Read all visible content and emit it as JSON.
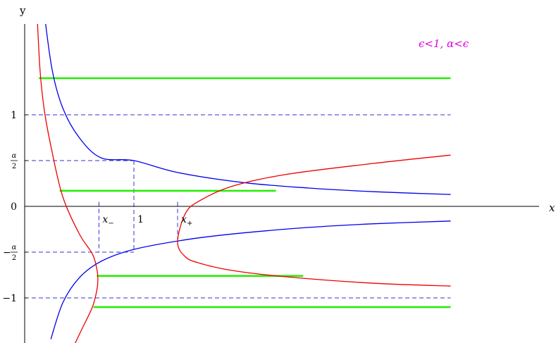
{
  "chart_data": {
    "type": "line",
    "title": "",
    "annotation": "ϵ<1, α<ϵ",
    "annotation_color": "#dd00dd",
    "xlabel": "x",
    "ylabel": "y",
    "xlim": [
      0,
      4
    ],
    "ylim": [
      -1.45,
      2.1
    ],
    "grid": false,
    "y_ticks": [
      {
        "value": 1,
        "label": "1"
      },
      {
        "value": 0.5,
        "label": "α/2",
        "num": "α",
        "den": "2",
        "sign": ""
      },
      {
        "value": 0,
        "label": "0"
      },
      {
        "value": -0.5,
        "label": "−α/2",
        "num": "α",
        "den": "2",
        "sign": "−"
      },
      {
        "value": -1,
        "label": "−1"
      }
    ],
    "x_marks": [
      {
        "value": 0.68,
        "label": "x₋",
        "base": "x",
        "sub": "−"
      },
      {
        "value": 1.0,
        "label": "1",
        "base": "1",
        "sub": ""
      },
      {
        "value": 1.4,
        "label": "x₊",
        "base": "x",
        "sub": "+"
      }
    ],
    "colors": {
      "blue": "#0000ee",
      "red": "#ee0000",
      "green": "#22ee00",
      "dashed": "#3333cc",
      "axis": "#000000"
    },
    "blue_curves": [
      {
        "x": [
          0.17,
          0.25,
          0.35,
          0.5,
          0.7,
          1.0,
          1.4,
          2.0,
          2.6,
          3.2,
          3.9
        ],
        "y": [
          2.2,
          1.5,
          1.07,
          0.75,
          0.53,
          0.5,
          0.37,
          0.26,
          0.2,
          0.16,
          0.13
        ]
      },
      {
        "x": [
          0.24,
          0.35,
          0.5,
          0.7,
          1.0,
          1.5,
          2.0,
          2.6,
          3.2,
          3.9
        ],
        "y": [
          -1.45,
          -1.05,
          -0.78,
          -0.6,
          -0.47,
          -0.36,
          -0.29,
          -0.23,
          -0.19,
          -0.16
        ]
      }
    ],
    "red_curves": [
      {
        "x": [
          0.11,
          0.14,
          0.18,
          0.25,
          0.35,
          0.5,
          0.62,
          0.66,
          0.67,
          0.66,
          0.62,
          0.52,
          0.44,
          0.4
        ],
        "y": [
          2.2,
          1.5,
          1.05,
          0.6,
          0.1,
          -0.3,
          -0.52,
          -0.68,
          -0.8,
          -0.92,
          -1.1,
          -1.35,
          -1.55,
          -1.65
        ]
      },
      {
        "x": [
          3.9,
          3.2,
          2.4,
          1.9,
          1.6,
          1.47,
          1.4,
          1.47,
          1.6,
          1.9,
          2.4,
          3.2,
          3.9
        ],
        "y": [
          0.56,
          0.47,
          0.35,
          0.22,
          0.06,
          -0.08,
          -0.39,
          -0.55,
          -0.62,
          -0.7,
          -0.77,
          -0.84,
          -0.87
        ]
      }
    ],
    "green_levels": [
      {
        "y": 1.4,
        "x_start": 0.13,
        "x_end": 3.9
      },
      {
        "y": 0.17,
        "x_start": 0.32,
        "x_end": 2.3
      },
      {
        "y": -0.76,
        "x_start": 0.66,
        "x_end": 2.55
      },
      {
        "y": -1.1,
        "x_start": 0.63,
        "x_end": 3.9
      }
    ],
    "dashed_h": [
      {
        "y": 1,
        "x_start": 0,
        "x_end": 3.9
      },
      {
        "y": 0.5,
        "x_start": 0,
        "x_end": 1.0
      },
      {
        "y": -0.5,
        "x_start": 0,
        "x_end": 1.0
      },
      {
        "y": -1,
        "x_start": 0,
        "x_end": 3.9
      }
    ],
    "dashed_v": [
      {
        "x": 0.68,
        "y_start": 0.05,
        "y_end": -0.5
      },
      {
        "x": 1.0,
        "y_start": 0.5,
        "y_end": -0.5
      },
      {
        "x": 1.4,
        "y_start": 0.05,
        "y_end": -0.39
      }
    ]
  }
}
